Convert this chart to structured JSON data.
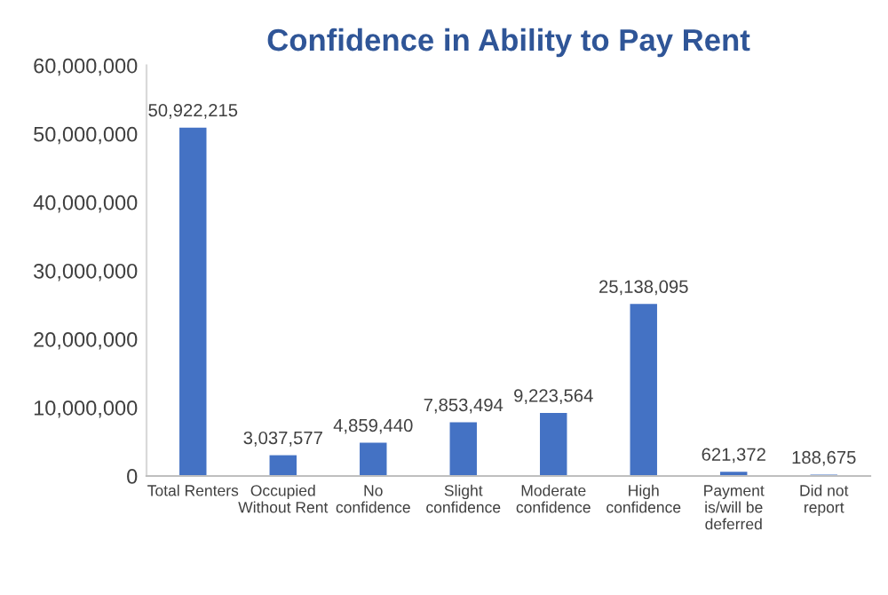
{
  "chart_data": {
    "type": "bar",
    "title": "Confidence in Ability to Pay Rent",
    "categories": [
      "Total Renters",
      "Occupied\nWithout Rent",
      "No\nconfidence",
      "Slight\nconfidence",
      "Moderate\nconfidence",
      "High\nconfidence",
      "Payment\nis/will be\ndeferred",
      "Did not\nreport"
    ],
    "values": [
      50922215,
      3037577,
      4859440,
      7853494,
      9223564,
      25138095,
      621372,
      188675
    ],
    "value_labels": [
      "50,922,215",
      "3,037,577",
      "4,859,440",
      "7,853,494",
      "9,223,564",
      "25,138,095",
      "621,372",
      "188,675"
    ],
    "color": "#4472c4",
    "ylim": [
      0,
      60000000
    ],
    "yticks": [
      {
        "value": 0,
        "label": "0"
      },
      {
        "value": 10000000,
        "label": "10,000,000"
      },
      {
        "value": 20000000,
        "label": "20,000,000"
      },
      {
        "value": 30000000,
        "label": "30,000,000"
      },
      {
        "value": 40000000,
        "label": "40,000,000"
      },
      {
        "value": 50000000,
        "label": "50,000,000"
      },
      {
        "value": 60000000,
        "label": "60,000,000"
      }
    ],
    "grid": false
  }
}
